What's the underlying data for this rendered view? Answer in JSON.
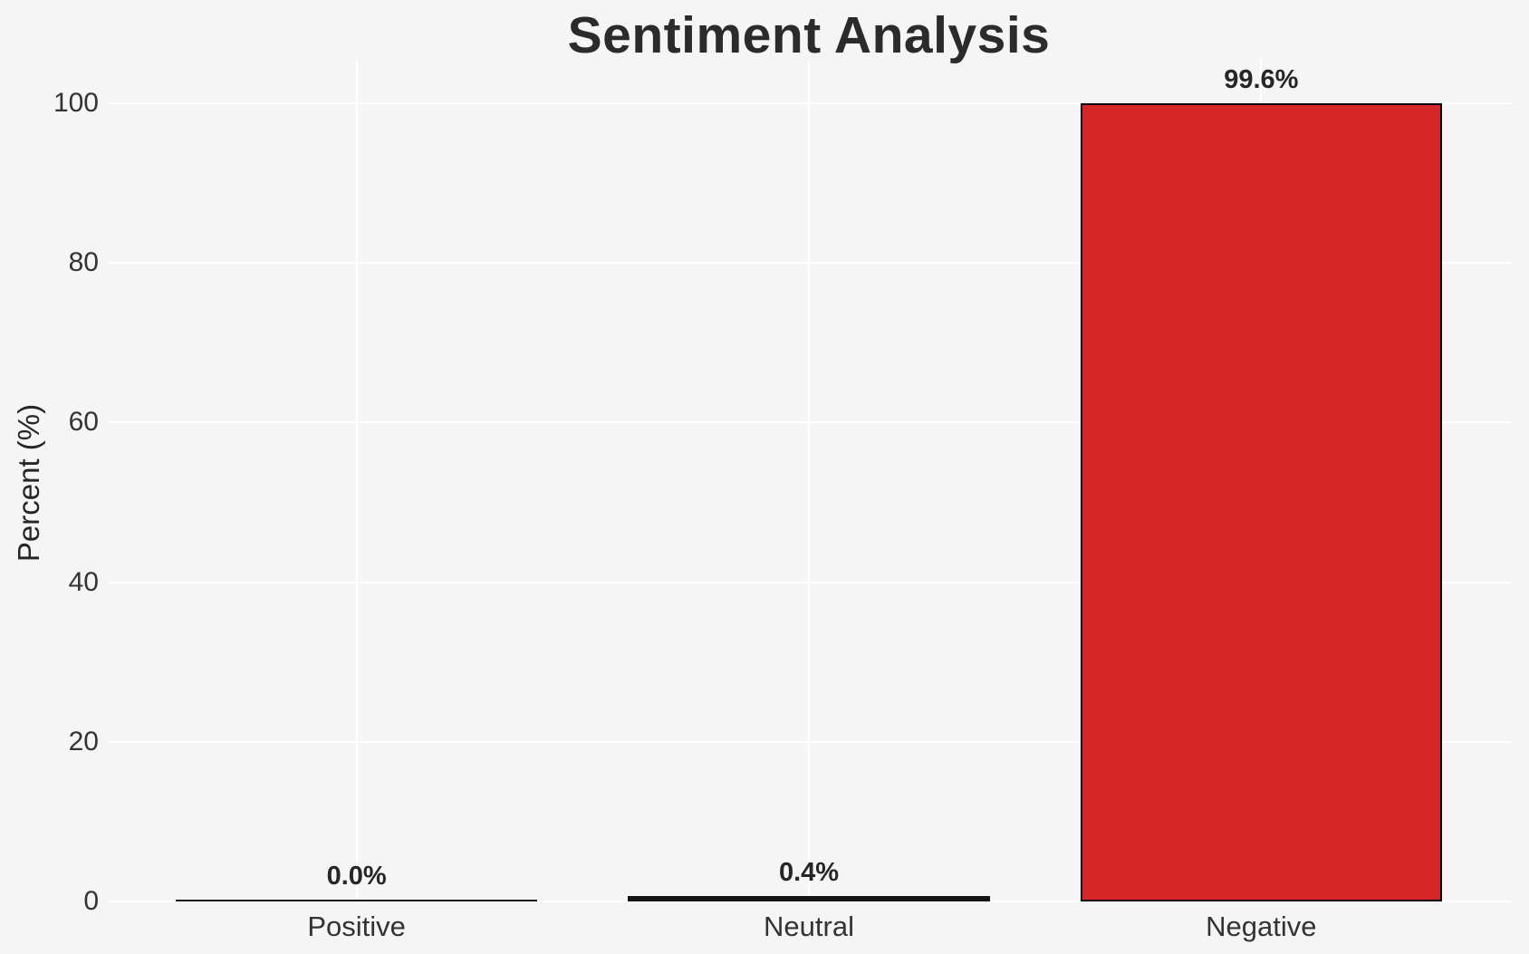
{
  "chart_data": {
    "type": "bar",
    "title": "Sentiment Analysis",
    "categories": [
      "Positive",
      "Neutral",
      "Negative"
    ],
    "values": [
      0.0,
      0.4,
      99.6
    ],
    "value_labels": [
      "0.0%",
      "0.4%",
      "99.6%"
    ],
    "xlabel": "",
    "ylabel": "Percent (%)",
    "ylim": [
      0,
      100
    ],
    "yticks": [
      0,
      20,
      40,
      60,
      80,
      100
    ],
    "ytick_labels": [
      "0",
      "20",
      "40",
      "60",
      "80",
      "100"
    ],
    "grid": true,
    "legend": false,
    "colors": {
      "background": "#f5f5f5",
      "gridline": "#ffffff",
      "bar_fill": "#d62728",
      "bar_edge": "#000000",
      "flat_bar": "#141414",
      "text": "#262626",
      "title": "#2b2b2b"
    }
  }
}
